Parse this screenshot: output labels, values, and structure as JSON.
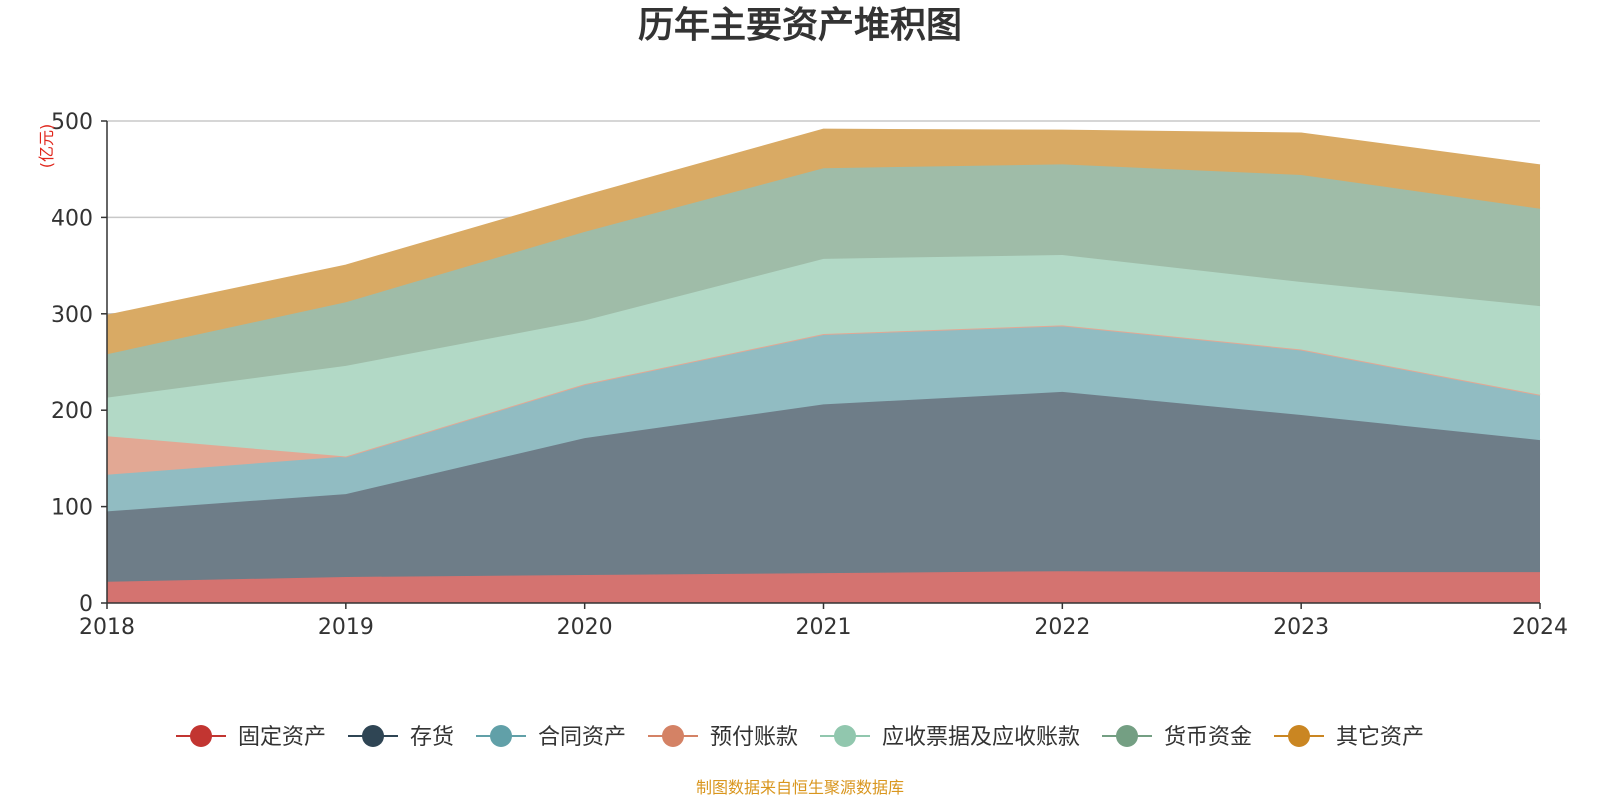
{
  "title": "历年主要资产堆积图",
  "source_note": "制图数据来自恒生聚源数据库",
  "chart_data": {
    "type": "area",
    "stacked": true,
    "title": "历年主要资产堆积图",
    "ylabel": "(亿元)",
    "xlabel": "",
    "x": [
      "2018",
      "2019",
      "2020",
      "2021",
      "2022",
      "2023",
      "2024"
    ],
    "ylim": [
      0,
      500
    ],
    "yticks": [
      0,
      100,
      200,
      300,
      400,
      500
    ],
    "grid": true,
    "legend_position": "bottom",
    "series": [
      {
        "name": "固定资产",
        "color": "#c23531",
        "fill": "#d47370",
        "values": [
          22,
          27,
          29,
          31,
          33,
          32,
          32
        ]
      },
      {
        "name": "存货",
        "color": "#2f4554",
        "fill": "#6e7d88",
        "values": [
          73,
          86,
          142,
          175,
          186,
          163,
          137
        ]
      },
      {
        "name": "合同资产",
        "color": "#61a0a8",
        "fill": "#91bcc2",
        "values": [
          38,
          39,
          56,
          73,
          69,
          68,
          47
        ]
      },
      {
        "name": "预付账款",
        "color": "#d48265",
        "fill": "#e2a894",
        "values": [
          40,
          0,
          0,
          0,
          0,
          0,
          0
        ]
      },
      {
        "name": "应收票据及应收账款",
        "color": "#91c7ae",
        "fill": "#b2d9c6",
        "values": [
          40,
          94,
          66,
          78,
          73,
          70,
          92
        ]
      },
      {
        "name": "货币资金",
        "color": "#749f83",
        "fill": "#9fbca8",
        "values": [
          45,
          66,
          92,
          94,
          94,
          111,
          101
        ]
      },
      {
        "name": "其它资产",
        "color": "#ca8622",
        "fill": "#d9aa64",
        "values": [
          40,
          38,
          37,
          40,
          35,
          43,
          45
        ]
      }
    ]
  }
}
